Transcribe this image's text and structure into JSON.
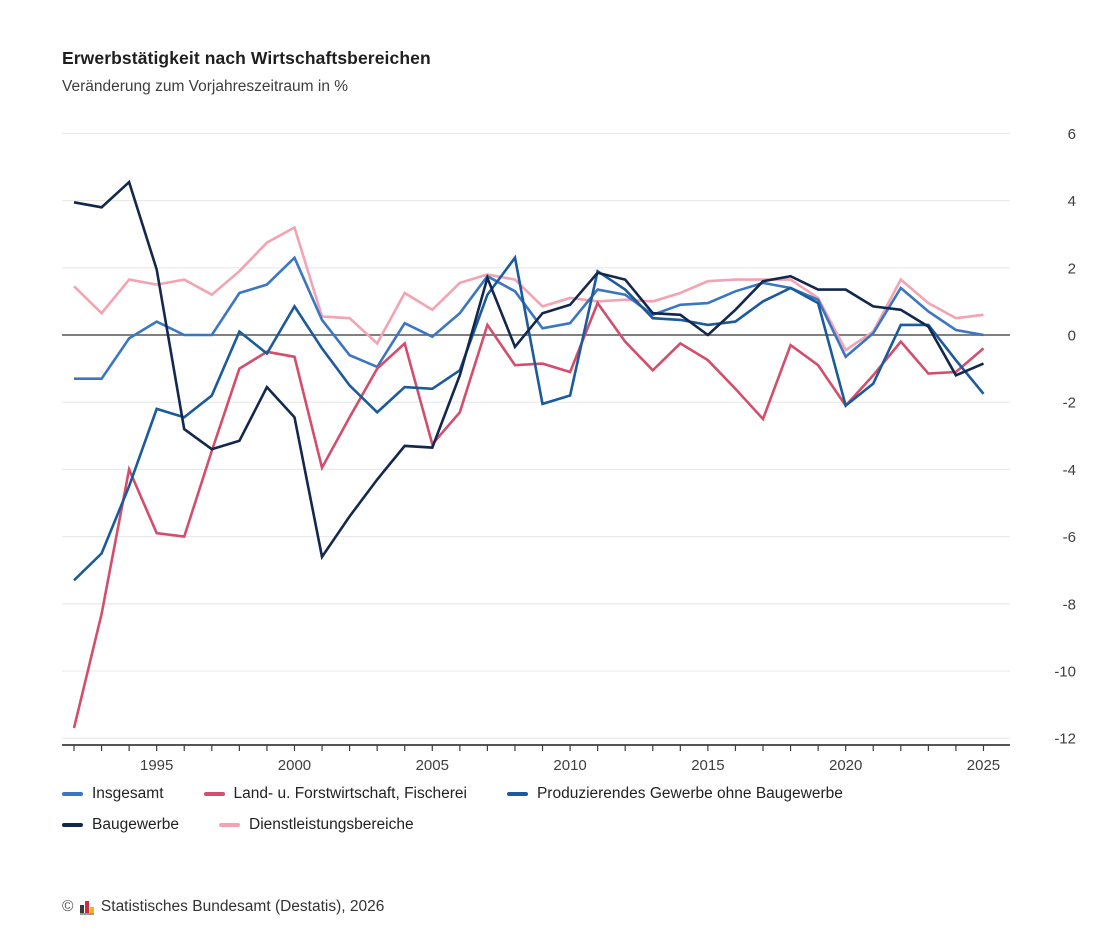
{
  "header": {
    "title": "Erwerbstätigkeit nach Wirtschaftsbereichen",
    "subtitle": "Veränderung zum Vorjahreszeitraum in %"
  },
  "chart_data": {
    "type": "line",
    "x": [
      1992,
      1993,
      1994,
      1995,
      1996,
      1997,
      1998,
      1999,
      2000,
      2001,
      2002,
      2003,
      2004,
      2005,
      2006,
      2007,
      2008,
      2009,
      2010,
      2011,
      2012,
      2013,
      2014,
      2015,
      2016,
      2017,
      2018,
      2019,
      2020,
      2021,
      2022,
      2023,
      2024,
      2025
    ],
    "x_tick_labels": [
      1995,
      2000,
      2005,
      2010,
      2015,
      2020,
      2025
    ],
    "y_ticks": [
      6,
      4,
      2,
      0,
      -2,
      -4,
      -6,
      -8,
      -10,
      -12
    ],
    "ylim": [
      -12.5,
      6.5
    ],
    "grid": "horizontal",
    "legend_position": "bottom",
    "series": [
      {
        "name": "Insgesamt",
        "color": "#3a76c2",
        "values": [
          -1.3,
          -1.3,
          -0.1,
          0.4,
          0.0,
          0.0,
          1.25,
          1.5,
          2.3,
          0.45,
          -0.6,
          -0.95,
          0.35,
          -0.05,
          0.65,
          1.75,
          1.3,
          0.2,
          0.35,
          1.35,
          1.2,
          0.6,
          0.9,
          0.95,
          1.3,
          1.55,
          1.4,
          1.05,
          -0.65,
          0.05,
          1.4,
          0.7,
          0.15,
          0.0
        ]
      },
      {
        "name": "Land- u. Forstwirtschaft, Fischerei",
        "color": "#d34e6c",
        "values": [
          -11.7,
          -8.3,
          -4.0,
          -5.9,
          -6.0,
          -3.45,
          -1.0,
          -0.5,
          -0.65,
          -3.95,
          -2.45,
          -1.0,
          -0.25,
          -3.25,
          -2.3,
          0.3,
          -0.9,
          -0.85,
          -1.1,
          0.95,
          -0.2,
          -1.05,
          -0.25,
          -0.75,
          -1.6,
          -2.5,
          -0.3,
          -0.9,
          -2.1,
          -1.2,
          -0.2,
          -1.15,
          -1.1,
          -0.4
        ]
      },
      {
        "name": "Produzierendes Gewerbe ohne Baugewerbe",
        "color": "#1b5a9b",
        "values": [
          -7.3,
          -6.5,
          -4.5,
          -2.2,
          -2.45,
          -1.8,
          0.1,
          -0.55,
          0.85,
          -0.4,
          -1.5,
          -2.3,
          -1.55,
          -1.6,
          -1.05,
          1.2,
          2.3,
          -2.05,
          -1.8,
          1.9,
          1.35,
          0.5,
          0.45,
          0.3,
          0.4,
          1.0,
          1.4,
          0.95,
          -2.1,
          -1.45,
          0.3,
          0.3,
          -0.75,
          -1.75
        ]
      },
      {
        "name": "Baugewerbe",
        "color": "#12284f",
        "values": [
          3.95,
          3.8,
          4.55,
          1.95,
          -2.8,
          -3.4,
          -3.15,
          -1.55,
          -2.45,
          -6.6,
          -5.4,
          -4.3,
          -3.3,
          -3.35,
          -1.2,
          1.7,
          -0.35,
          0.65,
          0.9,
          1.85,
          1.65,
          0.65,
          0.6,
          0.0,
          0.75,
          1.6,
          1.75,
          1.35,
          1.35,
          0.85,
          0.75,
          0.25,
          -1.2,
          -0.85
        ]
      },
      {
        "name": "Dienstleistungsbereiche",
        "color": "#f3a3b2",
        "values": [
          1.45,
          0.65,
          1.65,
          1.5,
          1.65,
          1.2,
          1.9,
          2.75,
          3.2,
          0.55,
          0.5,
          -0.25,
          1.25,
          0.75,
          1.55,
          1.8,
          1.65,
          0.85,
          1.1,
          1.0,
          1.05,
          1.0,
          1.25,
          1.6,
          1.65,
          1.65,
          1.65,
          1.1,
          -0.45,
          0.1,
          1.65,
          0.95,
          0.5,
          0.6
        ]
      }
    ],
    "legend_rows": [
      [
        0,
        1,
        2
      ],
      [
        3,
        4
      ]
    ],
    "draw_order": [
      4,
      0,
      1,
      2,
      3
    ]
  },
  "axis_style": {
    "grid_color": "#e9e9e9",
    "zero_line_color": "#6e6e6e",
    "axis_color": "#3d3d3d",
    "label_color": "#3f3f3f"
  },
  "footer": {
    "copyright": "©",
    "logo": "destatis-bar-chart-logo",
    "text": "Statistisches Bundesamt (Destatis), 2026"
  }
}
